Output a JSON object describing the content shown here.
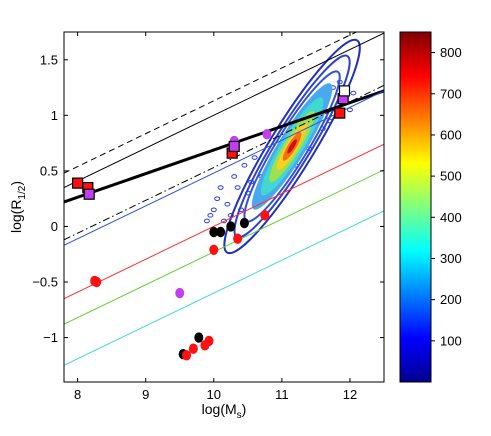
{
  "chart_data": {
    "type": "scatter",
    "xlabel_main": "log(M",
    "xlabel_sub": "s",
    "xlabel_close": ")",
    "ylabel_main": "log(R",
    "ylabel_sub": "1/2",
    "ylabel_close": ")",
    "xlim": [
      7.8,
      12.5
    ],
    "ylim": [
      -1.4,
      1.75
    ],
    "xticks": [
      8,
      9,
      10,
      11,
      12
    ],
    "yticks": [
      -1,
      -0.5,
      0,
      0.5,
      1,
      1.5
    ],
    "xtick_labels": [
      "8",
      "9",
      "10",
      "11",
      "12"
    ],
    "ytick_labels": [
      "−1",
      "−0.5",
      "0",
      "0.5",
      "1",
      "1.5"
    ],
    "grid": false,
    "colorbar": {
      "range": [
        0,
        850
      ],
      "ticks": [
        100,
        200,
        300,
        400,
        500,
        600,
        700,
        800
      ],
      "tick_labels": [
        "100",
        "200",
        "300",
        "400",
        "500",
        "600",
        "700",
        "800"
      ],
      "colormap": "jet"
    },
    "lines": [
      {
        "style": "thin-solid-black",
        "color": "#000000",
        "x": [
          7.8,
          12.5
        ],
        "y": [
          0.35,
          1.74
        ]
      },
      {
        "style": "dashed-black",
        "color": "#000000",
        "x": [
          7.8,
          12.5
        ],
        "y": [
          0.48,
          1.87
        ]
      },
      {
        "style": "dashdot-black",
        "color": "#000000",
        "x": [
          7.8,
          12.5
        ],
        "y": [
          -0.12,
          1.27
        ]
      },
      {
        "style": "thick-solid-black",
        "color": "#000000",
        "x": [
          7.8,
          12.5
        ],
        "y": [
          0.22,
          1.22
        ]
      },
      {
        "style": "solid-blue",
        "color": "#3050e0",
        "x": [
          7.8,
          12.5
        ],
        "y": [
          -0.17,
          1.22
        ]
      },
      {
        "style": "solid-red",
        "color": "#ff3030",
        "x": [
          7.8,
          12.5
        ],
        "y": [
          -0.65,
          0.74
        ]
      },
      {
        "style": "solid-green",
        "color": "#60d030",
        "x": [
          7.8,
          12.5
        ],
        "y": [
          -0.88,
          0.51
        ]
      },
      {
        "style": "solid-cyan",
        "color": "#40d8e0",
        "x": [
          7.8,
          12.5
        ],
        "y": [
          -1.25,
          0.14
        ]
      }
    ],
    "density_cloud": {
      "center": [
        11.15,
        0.72
      ],
      "orientation_slope": 1.0,
      "outer_contours": [
        {
          "half_major": 1.35,
          "half_minor": 0.24,
          "color": "#2030c0"
        },
        {
          "half_major": 1.15,
          "half_minor": 0.2,
          "color": "#3040d0"
        },
        {
          "half_major": 0.95,
          "half_minor": 0.17,
          "color": "#3050e0"
        }
      ],
      "filled_levels": [
        {
          "half_major": 0.8,
          "half_minor": 0.15,
          "color": "#4aa8f0"
        },
        {
          "half_major": 0.62,
          "half_minor": 0.12,
          "color": "#40d8d0"
        },
        {
          "half_major": 0.45,
          "half_minor": 0.09,
          "color": "#a0e050"
        },
        {
          "half_major": 0.3,
          "half_minor": 0.065,
          "color": "#f8d020"
        },
        {
          "half_major": 0.18,
          "half_minor": 0.045,
          "color": "#f87010"
        },
        {
          "half_major": 0.09,
          "half_minor": 0.025,
          "color": "#d01010"
        }
      ]
    },
    "points": [
      {
        "x": 10.25,
        "y": 0.0,
        "color": "#000000"
      },
      {
        "x": 10.45,
        "y": 0.03,
        "color": "#000000"
      },
      {
        "x": 10.0,
        "y": -0.05,
        "color": "#000000"
      },
      {
        "x": 10.1,
        "y": -0.05,
        "color": "#000000"
      },
      {
        "x": 10.35,
        "y": -0.11,
        "color": "#ff1010"
      },
      {
        "x": 10.0,
        "y": -0.21,
        "color": "#ff1010"
      },
      {
        "x": 10.75,
        "y": 0.1,
        "color": "#ff1010"
      },
      {
        "x": 8.25,
        "y": -0.49,
        "color": "#ff1010"
      },
      {
        "x": 8.28,
        "y": -0.5,
        "color": "#ff1010"
      },
      {
        "x": 9.55,
        "y": -1.15,
        "color": "#000000"
      },
      {
        "x": 9.78,
        "y": -1.0,
        "color": "#000000"
      },
      {
        "x": 9.6,
        "y": -1.16,
        "color": "#ff1010"
      },
      {
        "x": 9.7,
        "y": -1.1,
        "color": "#ff1010"
      },
      {
        "x": 9.87,
        "y": -1.07,
        "color": "#ff1010"
      },
      {
        "x": 9.93,
        "y": -1.03,
        "color": "#ff1010"
      },
      {
        "x": 9.5,
        "y": -0.6,
        "color": "#c040f0"
      },
      {
        "x": 10.3,
        "y": 0.77,
        "color": "#c040f0"
      },
      {
        "x": 10.78,
        "y": 0.83,
        "color": "#c040f0"
      }
    ],
    "squares": [
      {
        "x": 8.0,
        "y": 0.39,
        "fill": "#ff1010",
        "edge": "#000000"
      },
      {
        "x": 8.15,
        "y": 0.35,
        "fill": "#ff1010",
        "edge": "#000000"
      },
      {
        "x": 8.17,
        "y": 0.29,
        "fill": "#c040f0",
        "edge": "#000000"
      },
      {
        "x": 10.27,
        "y": 0.66,
        "fill": "#ff1010",
        "edge": "#000000"
      },
      {
        "x": 10.3,
        "y": 0.72,
        "fill": "#c040f0",
        "edge": "#000000"
      },
      {
        "x": 11.85,
        "y": 1.02,
        "fill": "#ff1010",
        "edge": "#000000"
      },
      {
        "x": 11.9,
        "y": 1.15,
        "fill": "#c040f0",
        "edge": "#000000"
      },
      {
        "x": 11.92,
        "y": 1.22,
        "fill": "#ffffff",
        "edge": "#000000"
      }
    ],
    "background_noise": [
      [
        10.0,
        0.15
      ],
      [
        10.05,
        0.25
      ],
      [
        9.95,
        0.1
      ],
      [
        10.1,
        0.35
      ],
      [
        10.2,
        0.2
      ],
      [
        10.3,
        0.45
      ],
      [
        10.25,
        0.1
      ],
      [
        9.9,
        0.05
      ],
      [
        10.45,
        0.55
      ],
      [
        10.6,
        0.62
      ],
      [
        10.5,
        0.3
      ],
      [
        10.55,
        0.4
      ],
      [
        10.8,
        0.5
      ],
      [
        10.9,
        0.58
      ],
      [
        11.0,
        0.55
      ],
      [
        10.7,
        0.45
      ],
      [
        11.6,
        0.88
      ],
      [
        11.8,
        1.05
      ],
      [
        11.9,
        1.15
      ],
      [
        12.0,
        1.05
      ],
      [
        11.75,
        1.25
      ],
      [
        11.85,
        1.3
      ],
      [
        12.05,
        1.2
      ],
      [
        11.7,
        0.95
      ],
      [
        10.15,
        0.05
      ],
      [
        10.35,
        0.35
      ],
      [
        10.4,
        0.15
      ],
      [
        10.65,
        0.3
      ],
      [
        11.2,
        0.55
      ],
      [
        11.4,
        0.7
      ],
      [
        11.5,
        1.05
      ],
      [
        11.3,
        1.0
      ]
    ]
  }
}
